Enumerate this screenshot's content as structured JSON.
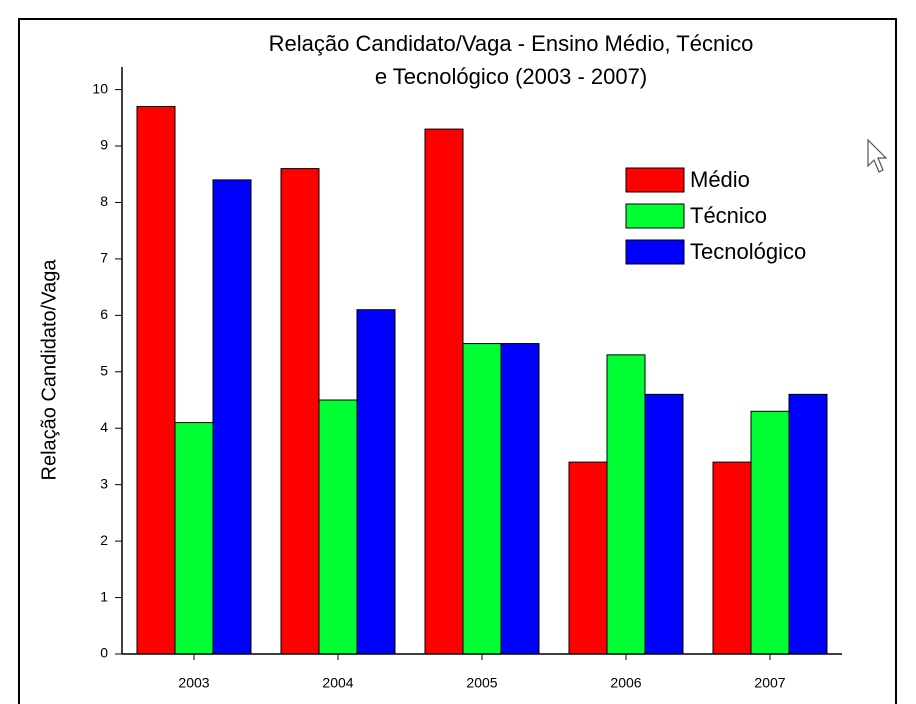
{
  "chart_data": {
    "type": "bar",
    "title": [
      "Relação Candidato/Vaga - Ensino Médio, Técnico",
      "e Tecnológico (2003 - 2007)"
    ],
    "y_label": "Relação Candidato/Vaga",
    "categories": [
      "2003",
      "2004",
      "2005",
      "2006",
      "2007"
    ],
    "series": [
      {
        "name": "Médio",
        "color": "#ff0000",
        "values": [
          9.7,
          8.6,
          9.3,
          3.4,
          3.4
        ]
      },
      {
        "name": "Técnico",
        "color": "#00ff33",
        "values": [
          4.1,
          4.5,
          5.5,
          5.3,
          4.3
        ]
      },
      {
        "name": "Tecnológico",
        "color": "#0000ff",
        "values": [
          8.4,
          6.1,
          5.5,
          4.6,
          4.6
        ]
      }
    ],
    "ylim": [
      0,
      10.4
    ],
    "yticks": [
      0,
      1,
      2,
      3,
      4,
      5,
      6,
      7,
      8,
      9,
      10
    ],
    "legend": "upper right"
  }
}
